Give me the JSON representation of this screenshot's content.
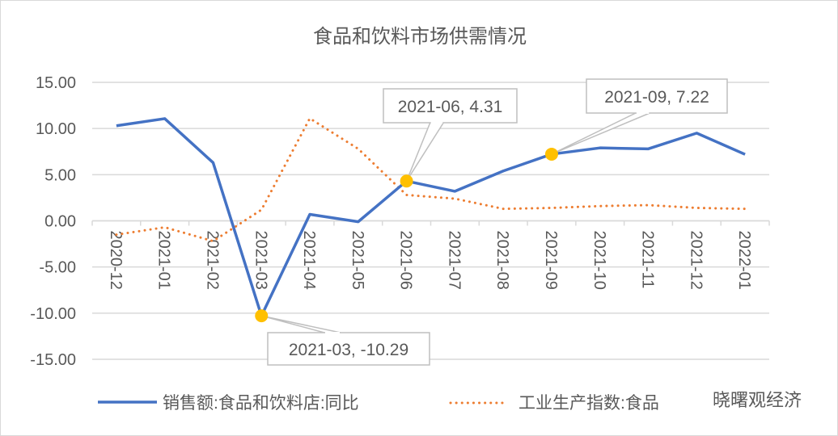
{
  "chart_data": {
    "type": "line",
    "title": "食品和饮料市场供需情况",
    "xlabel": "",
    "ylabel": "",
    "ylim": [
      -15,
      15
    ],
    "ytick_step": 5,
    "yticks": [
      "15.00",
      "10.00",
      "5.00",
      "0.00",
      "-5.00",
      "-10.00",
      "-15.00"
    ],
    "grid": true,
    "legend_position": "bottom",
    "categories": [
      "2020-12",
      "2021-01",
      "2021-02",
      "2021-03",
      "2021-04",
      "2021-05",
      "2021-06",
      "2021-07",
      "2021-08",
      "2021-09",
      "2021-10",
      "2021-11",
      "2021-12",
      "2022-01"
    ],
    "series": [
      {
        "name": "销售额:食品和饮料店:同比",
        "color": "#4472C4",
        "style": "solid",
        "values": [
          10.3,
          11.07,
          6.3,
          -10.29,
          0.7,
          -0.1,
          4.31,
          3.2,
          5.4,
          7.22,
          7.9,
          7.8,
          9.5,
          7.2
        ]
      },
      {
        "name": "工业生产指数:食品",
        "color": "#ED7D31",
        "style": "dotted",
        "values": [
          -1.5,
          -0.7,
          -2.2,
          1.2,
          11.1,
          7.8,
          2.8,
          2.4,
          1.3,
          1.4,
          1.6,
          1.7,
          1.4,
          1.3
        ]
      }
    ],
    "annotations": [
      {
        "series": 0,
        "index": 3,
        "text": "2021-03, -10.29"
      },
      {
        "series": 0,
        "index": 6,
        "text": "2021-06, 4.31"
      },
      {
        "series": 0,
        "index": 9,
        "text": "2021-09, 7.22"
      }
    ],
    "marker_color": "#FFC000"
  },
  "watermark": "晓曙观经济"
}
